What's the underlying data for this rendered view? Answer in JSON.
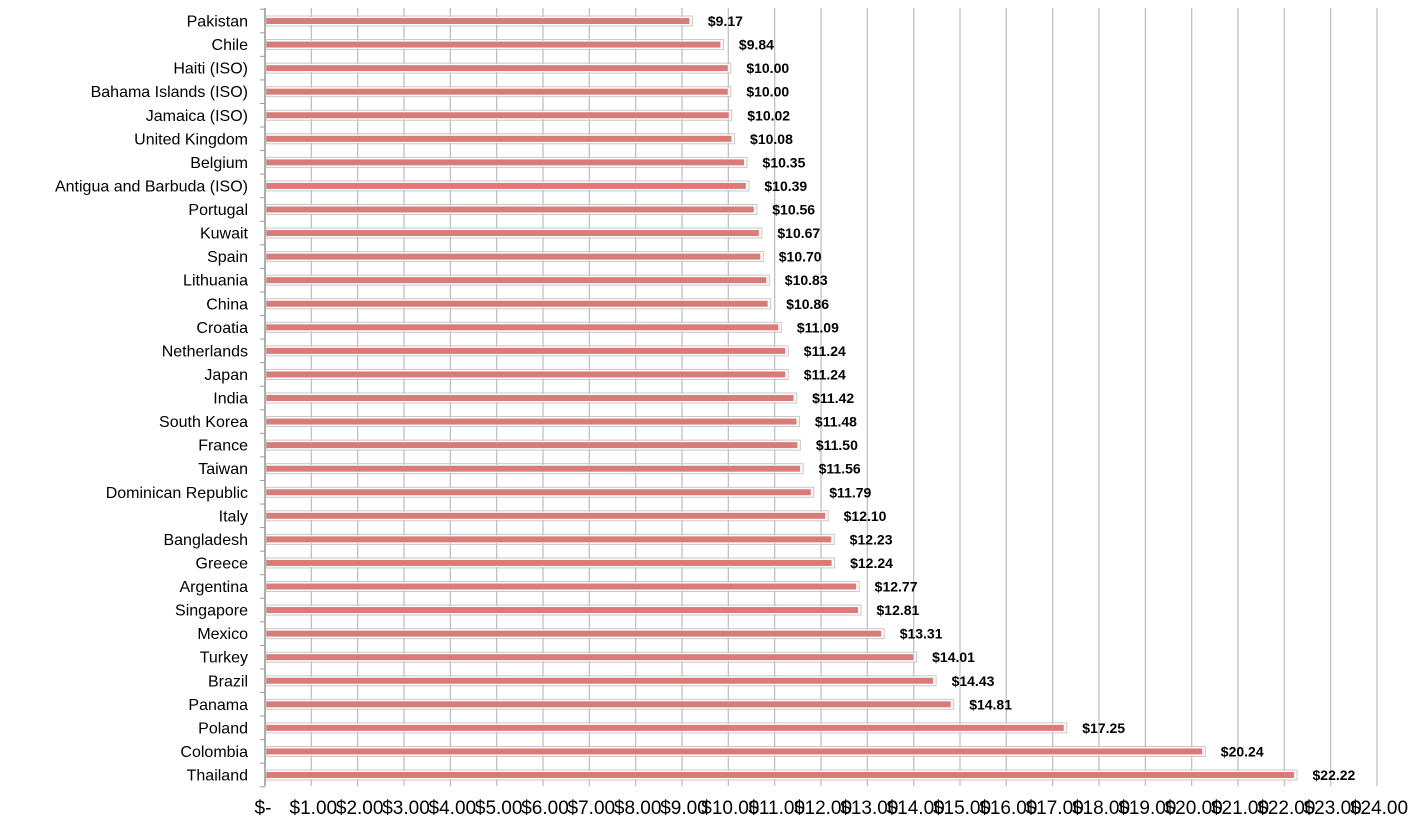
{
  "chart_data": {
    "type": "bar",
    "orientation": "horizontal",
    "title": "",
    "xlabel": "",
    "ylabel": "",
    "xlim": [
      0,
      24
    ],
    "grid": "vertical",
    "legend": "none",
    "colors": {
      "bar": "#d97b77",
      "bar_edge": "#c7c7c7",
      "grid": "#c0c0c0",
      "text": "#000000"
    },
    "categories": [
      "Pakistan",
      "Chile",
      "Haiti (ISO)",
      "Bahama Islands (ISO)",
      "Jamaica (ISO)",
      "United Kingdom",
      "Belgium",
      "Antigua and Barbuda (ISO)",
      "Portugal",
      "Kuwait",
      "Spain",
      "Lithuania",
      "China",
      "Croatia",
      "Netherlands",
      "Japan",
      "India",
      "South Korea",
      "France",
      "Taiwan",
      "Dominican Republic",
      "Italy",
      "Bangladesh",
      "Greece",
      "Argentina",
      "Singapore",
      "Mexico",
      "Turkey",
      "Brazil",
      "Panama",
      "Poland",
      "Colombia",
      "Thailand"
    ],
    "values": [
      9.17,
      9.84,
      10.0,
      10.0,
      10.02,
      10.08,
      10.35,
      10.39,
      10.56,
      10.67,
      10.7,
      10.83,
      10.86,
      11.09,
      11.24,
      11.24,
      11.42,
      11.48,
      11.5,
      11.56,
      11.79,
      12.1,
      12.23,
      12.24,
      12.77,
      12.81,
      13.31,
      14.01,
      14.43,
      14.81,
      17.25,
      20.24,
      22.22
    ],
    "data_labels": [
      "$9.17",
      "$9.84",
      "$10.00",
      "$10.00",
      "$10.02",
      "$10.08",
      "$10.35",
      "$10.39",
      "$10.56",
      "$10.67",
      "$10.70",
      "$10.83",
      "$10.86",
      "$11.09",
      "$11.24",
      "$11.24",
      "$11.42",
      "$11.48",
      "$11.50",
      "$11.56",
      "$11.79",
      "$12.10",
      "$12.23",
      "$12.24",
      "$12.77",
      "$12.81",
      "$13.31",
      "$14.01",
      "$14.43",
      "$14.81",
      "$17.25",
      "$20.24",
      "$22.22"
    ],
    "tick_labels": [
      "$-",
      "$1.00",
      "$2.00",
      "$3.00",
      "$4.00",
      "$5.00",
      "$6.00",
      "$7.00",
      "$8.00",
      "$9.00",
      "$10.00",
      "$11.00",
      "$12.00",
      "$13.00",
      "$14.00",
      "$15.00",
      "$16.00",
      "$17.00",
      "$18.00",
      "$19.00",
      "$20.00",
      "$21.00",
      "$22.00",
      "$23.00",
      "$24.00"
    ]
  }
}
